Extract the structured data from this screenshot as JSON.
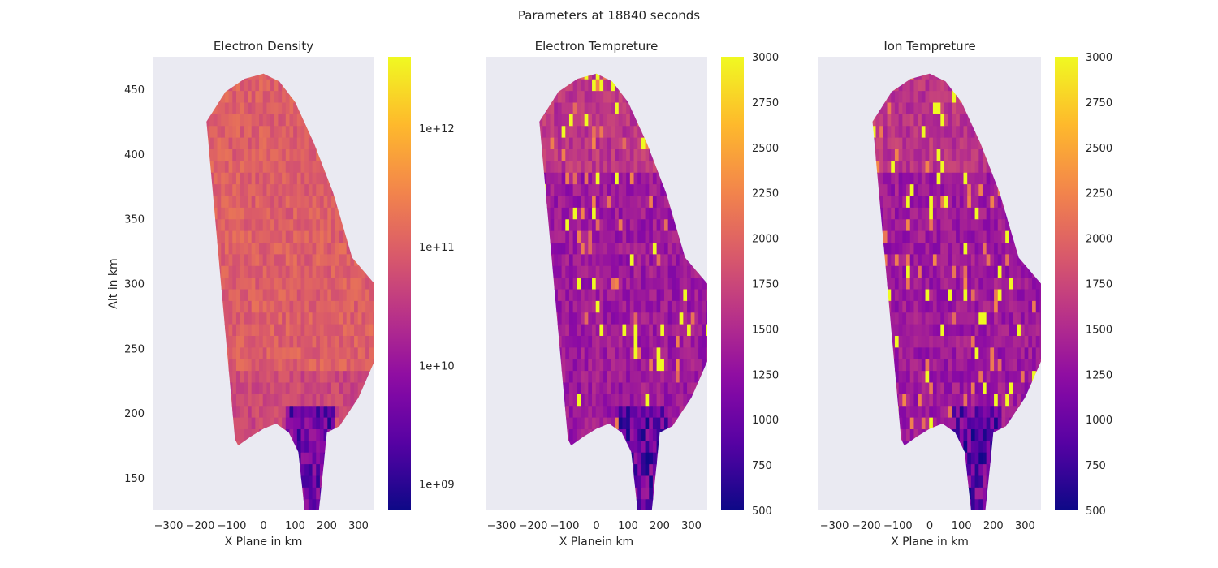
{
  "figure": {
    "suptitle": "Parameters at 18840 seconds"
  },
  "chart_data": [
    {
      "type": "heatmap",
      "title": "Electron Density",
      "xlabel": "X Plane in km",
      "ylabel": "Alt in km",
      "xlim": [
        -350,
        350
      ],
      "ylim": [
        125,
        475
      ],
      "xticks": [
        -300,
        -200,
        -100,
        0,
        100,
        200,
        300
      ],
      "yticks": [
        150,
        200,
        250,
        300,
        350,
        400,
        450
      ],
      "grid": false,
      "colormap": "plasma",
      "colorbar": {
        "scale": "log",
        "range": [
          600000000.0,
          4000000000000.0
        ],
        "ticks": [
          1000000000.0,
          10000000000.0,
          100000000000.0,
          1000000000000.0
        ],
        "tick_labels": [
          "1e+09",
          "1e+10",
          "1e+11",
          "1e+12"
        ]
      },
      "field": {
        "typical_value": 100000000000.0,
        "low_value_region": "bottom tip (below ~190 km, x 100-200 km)"
      }
    },
    {
      "type": "heatmap",
      "title": "Electron Tempreture",
      "xlabel": "X Planein km",
      "ylabel": "",
      "xlim": [
        -350,
        350
      ],
      "ylim": [
        125,
        475
      ],
      "xticks": [
        -300,
        -200,
        -100,
        0,
        100,
        200,
        300
      ],
      "yticks": [],
      "grid": false,
      "colormap": "plasma",
      "colorbar": {
        "scale": "linear",
        "range": [
          500,
          3000
        ],
        "ticks": [
          500,
          750,
          1000,
          1250,
          1500,
          1750,
          2000,
          2250,
          2500,
          2750,
          3000
        ],
        "tick_labels": [
          "500",
          "750",
          "1000",
          "1250",
          "1500",
          "1750",
          "2000",
          "2250",
          "2500",
          "2750",
          "3000"
        ]
      },
      "field": {
        "typical_value": 1350,
        "hot_spots_value": 3000,
        "low_value_region": "bottom tip (below ~190 km)"
      }
    },
    {
      "type": "heatmap",
      "title": "Ion Tempreture",
      "xlabel": "X Plane in km",
      "ylabel": "",
      "xlim": [
        -350,
        350
      ],
      "ylim": [
        125,
        475
      ],
      "xticks": [
        -300,
        -200,
        -100,
        0,
        100,
        200,
        300
      ],
      "yticks": [],
      "grid": false,
      "colormap": "plasma",
      "colorbar": {
        "scale": "linear",
        "range": [
          500,
          3000
        ],
        "ticks": [
          500,
          750,
          1000,
          1250,
          1500,
          1750,
          2000,
          2250,
          2500,
          2750,
          3000
        ],
        "tick_labels": [
          "500",
          "750",
          "1000",
          "1250",
          "1500",
          "1750",
          "2000",
          "2250",
          "2500",
          "2750",
          "3000"
        ]
      },
      "field": {
        "typical_value": 1350,
        "hot_spots_value": 3000,
        "low_value_region": "bottom tip (below ~190 km)"
      }
    }
  ]
}
